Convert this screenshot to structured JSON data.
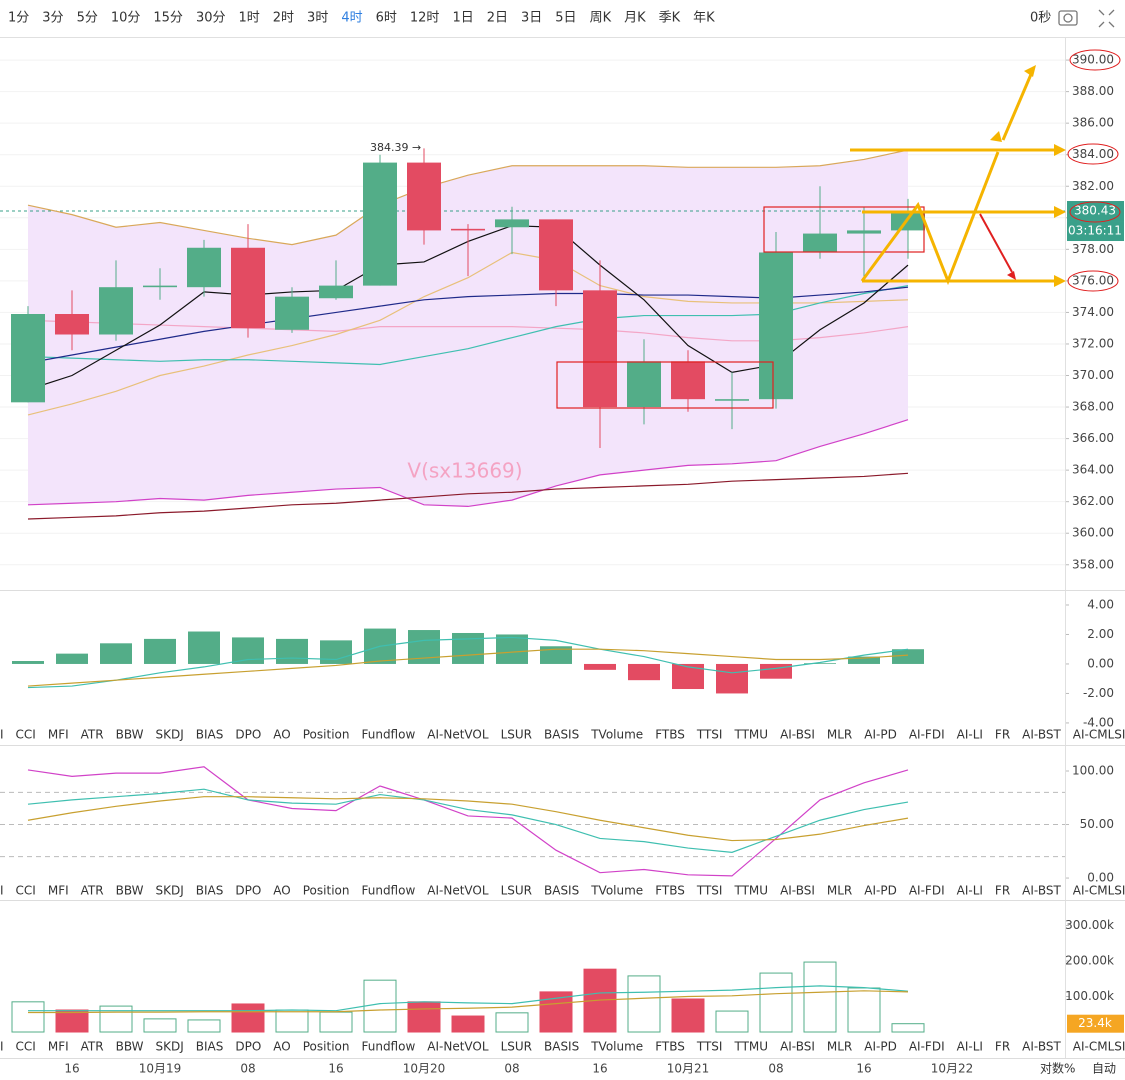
{
  "toolbar": {
    "timeframes": [
      "1分",
      "3分",
      "5分",
      "10分",
      "15分",
      "30分",
      "1时",
      "2时",
      "3时",
      "4时",
      "6时",
      "12时",
      "1日",
      "2日",
      "3日",
      "5日",
      "周K",
      "月K",
      "季K",
      "年K"
    ],
    "active_index": 9,
    "seconds": "0秒"
  },
  "indicator_tabs": [
    "I",
    "CCI",
    "MFI",
    "ATR",
    "BBW",
    "SKDJ",
    "BIAS",
    "DPO",
    "AO",
    "Position",
    "Fundflow",
    "AI-NetVOL",
    "LSUR",
    "BASIS",
    "TVolume",
    "FTBS",
    "TTSI",
    "TTMU",
    "AI-BSI",
    "MLR",
    "AI-PD",
    "AI-FDI",
    "AI-LI",
    "FR",
    "AI-BST",
    "AI-CMLSI"
  ],
  "time_axis": [
    null,
    "16",
    null,
    "10月19",
    null,
    "08",
    null,
    "16",
    null,
    "10月20",
    null,
    "08",
    null,
    "16",
    null,
    "10月21",
    null,
    "08",
    null,
    "16",
    null,
    "10月22"
  ],
  "footer": {
    "log": "对数",
    "percent": "%",
    "auto": "自动"
  },
  "watermark": "V(sx13669)",
  "chart_data": [
    {
      "type": "candlestick",
      "up_color": "#53ad88",
      "down_color": "#e34b62",
      "grid": true,
      "open": [
        368.3,
        373.9,
        372.6,
        375.6,
        375.6,
        378.1,
        372.9,
        374.9,
        375.7,
        383.5,
        379.3,
        379.4,
        379.9,
        375.4,
        368.0,
        370.9,
        368.4,
        368.5,
        377.8,
        379.0,
        379.2
      ],
      "high": [
        374.4,
        375.4,
        377.3,
        376.8,
        378.6,
        379.6,
        375.6,
        377.3,
        384.0,
        384.4,
        379.6,
        380.7,
        379.9,
        377.3,
        372.3,
        371.6,
        370.2,
        379.1,
        382.0,
        380.7,
        381.2
      ],
      "low": [
        368.3,
        371.6,
        372.2,
        374.8,
        375.0,
        372.4,
        372.7,
        374.8,
        375.7,
        378.3,
        376.3,
        377.7,
        374.4,
        365.4,
        366.9,
        367.7,
        366.6,
        367.9,
        377.4,
        376.1,
        377.4
      ],
      "close": [
        373.9,
        372.6,
        375.6,
        375.7,
        378.1,
        373.0,
        375.0,
        375.7,
        383.5,
        379.2,
        379.2,
        379.9,
        375.4,
        368.0,
        370.9,
        368.5,
        368.5,
        377.8,
        379.0,
        379.2,
        380.4
      ],
      "series": [
        {
          "color": "#f3a6c6",
          "values": [
            373.5,
            373.4,
            373.3,
            373.2,
            373.1,
            373.0,
            372.9,
            372.8,
            373.1,
            373.1,
            373.1,
            373.1,
            373.0,
            372.9,
            372.7,
            372.4,
            372.2,
            372.2,
            372.4,
            372.7,
            373.1
          ]
        },
        {
          "color": "#d9a85a",
          "values": [
            380.8,
            380.2,
            379.4,
            379.7,
            379.2,
            378.7,
            378.3,
            378.9,
            380.8,
            381.9,
            382.7,
            383.3,
            383.3,
            383.3,
            383.3,
            383.2,
            383.2,
            383.2,
            383.3,
            383.7,
            384.3
          ]
        },
        {
          "color": "#d142c8",
          "values": [
            361.8,
            361.9,
            362.0,
            362.2,
            362.1,
            362.4,
            362.6,
            362.8,
            362.9,
            361.8,
            361.7,
            362.1,
            363.0,
            363.7,
            364.0,
            364.3,
            364.4,
            364.6,
            365.5,
            366.3,
            367.2
          ]
        },
        {
          "color": "#8b1a2b",
          "values": [
            360.9,
            361.0,
            361.1,
            361.3,
            361.4,
            361.6,
            361.8,
            361.9,
            362.1,
            362.3,
            362.5,
            362.6,
            362.8,
            362.9,
            363.0,
            363.1,
            363.3,
            363.4,
            363.5,
            363.6,
            363.8
          ]
        },
        {
          "color": "#e8c07a",
          "values": [
            367.5,
            368.2,
            369.0,
            370.0,
            370.6,
            371.3,
            371.9,
            372.6,
            373.5,
            375.0,
            376.2,
            377.8,
            377.3,
            375.7,
            375.0,
            374.7,
            374.6,
            374.6,
            374.6,
            374.7,
            374.8
          ]
        },
        {
          "color": "#3fbfb0",
          "values": [
            371.2,
            371.1,
            371.0,
            370.9,
            371.0,
            371.0,
            370.9,
            370.8,
            370.7,
            371.2,
            371.7,
            372.4,
            373.1,
            373.6,
            373.8,
            373.8,
            373.8,
            373.9,
            374.6,
            375.2,
            375.7
          ]
        },
        {
          "color": "#1f2a8a",
          "values": [
            370.8,
            371.3,
            371.8,
            372.3,
            372.8,
            373.2,
            373.6,
            374.0,
            374.4,
            374.8,
            375.0,
            375.1,
            375.2,
            375.2,
            375.1,
            375.1,
            375.0,
            374.9,
            375.1,
            375.3,
            375.6
          ]
        },
        {
          "color": "#111111",
          "values": [
            369.1,
            370.0,
            371.6,
            373.2,
            375.3,
            375.1,
            375.3,
            375.4,
            377.0,
            377.2,
            378.5,
            379.5,
            379.4,
            377.0,
            374.8,
            371.9,
            370.2,
            370.7,
            372.9,
            374.6,
            377.0
          ]
        }
      ],
      "ylim": [
        356.4,
        391.4
      ],
      "yticks": [
        {
          "value": 358,
          "label": "358.00"
        },
        {
          "value": 360,
          "label": "360.00"
        },
        {
          "value": 362,
          "label": "362.00"
        },
        {
          "value": 364,
          "label": "364.00"
        },
        {
          "value": 366,
          "label": "366.00"
        },
        {
          "value": 368,
          "label": "368.00"
        },
        {
          "value": 370,
          "label": "370.00"
        },
        {
          "value": 372,
          "label": "372.00"
        },
        {
          "value": 374,
          "label": "374.00"
        },
        {
          "value": 376,
          "label": "376.00"
        },
        {
          "value": 378,
          "label": "378.00"
        },
        {
          "value": 380,
          "label": "380.00"
        },
        {
          "value": 382,
          "label": "382.00"
        },
        {
          "value": 384,
          "label": "384.00"
        },
        {
          "value": 386,
          "label": "386.00"
        },
        {
          "value": 388,
          "label": "388.00"
        },
        {
          "value": 390,
          "label": "390.00"
        }
      ],
      "last_price": 380.43,
      "countdown": "03:16:11",
      "high_label": "384.39 →"
    },
    {
      "type": "bar",
      "up_color": "#53ad88",
      "down_color": "#e34b62",
      "values": [
        0.2,
        0.7,
        1.4,
        1.7,
        2.2,
        1.8,
        1.7,
        1.6,
        2.4,
        2.3,
        2.1,
        2.0,
        1.2,
        -0.4,
        -1.1,
        -1.7,
        -2.0,
        -1.0,
        0.05,
        0.5,
        1.0
      ],
      "series": [
        {
          "color": "#3fbfb0",
          "values": [
            -1.6,
            -1.5,
            -1.1,
            -0.6,
            -0.2,
            0.3,
            0.4,
            0.3,
            1.2,
            1.6,
            1.7,
            1.8,
            1.6,
            1.0,
            0.5,
            -0.2,
            -0.6,
            -0.3,
            0.1,
            0.6,
            1.0
          ]
        },
        {
          "color": "#c8a030",
          "values": [
            -1.5,
            -1.3,
            -1.1,
            -0.9,
            -0.7,
            -0.5,
            -0.3,
            -0.1,
            0.2,
            0.4,
            0.6,
            0.8,
            1.0,
            1.0,
            0.9,
            0.7,
            0.5,
            0.3,
            0.3,
            0.4,
            0.6
          ]
        }
      ],
      "ylim": [
        -4.14,
        4.88
      ],
      "yticks": [
        {
          "value": 4,
          "label": "4.00"
        },
        {
          "value": 2,
          "label": "2.00"
        },
        {
          "value": 0,
          "label": "0.00"
        },
        {
          "value": -2,
          "label": "-2.00"
        },
        {
          "value": -4,
          "label": "-4.00"
        }
      ]
    },
    {
      "type": "line",
      "reference_lines": [
        80,
        50,
        20
      ],
      "series": [
        {
          "color": "#d142c8",
          "values": [
            101,
            95,
            98,
            98,
            104,
            73,
            65,
            63,
            86,
            73,
            58,
            56,
            26,
            5,
            8,
            3,
            2,
            37,
            73,
            89,
            101
          ]
        },
        {
          "color": "#3fbfb0",
          "values": [
            69,
            73,
            76,
            79,
            83,
            73,
            70,
            69,
            78,
            73,
            64,
            59,
            50,
            37,
            34,
            28,
            24,
            39,
            54,
            64,
            71
          ]
        },
        {
          "color": "#c8a030",
          "values": [
            54,
            61,
            67,
            72,
            76,
            76,
            75,
            74,
            75,
            74,
            72,
            69,
            62,
            54,
            47,
            40,
            35,
            36,
            41,
            49,
            56
          ]
        }
      ],
      "ylim": [
        -3.7,
        124.3
      ],
      "yticks": [
        {
          "value": 0,
          "label": "0.00"
        },
        {
          "value": 50,
          "label": "50.00"
        },
        {
          "value": 100,
          "label": "100.00"
        }
      ]
    },
    {
      "type": "volume",
      "up_color": "#53ad88",
      "down_color": "#e34b62",
      "values": [
        85000,
        62000,
        73000,
        37000,
        34000,
        79000,
        62000,
        56000,
        146000,
        85000,
        45000,
        54000,
        113000,
        177000,
        158000,
        93000,
        59000,
        166000,
        197000,
        124000,
        23400
      ],
      "series": [
        {
          "color": "#3fbfb0",
          "values": [
            60000,
            60000,
            60000,
            60000,
            60000,
            60000,
            62000,
            60000,
            80000,
            85000,
            82000,
            80000,
            95000,
            110000,
            112000,
            115000,
            118000,
            125000,
            130000,
            125000,
            115000
          ]
        },
        {
          "color": "#c8a030",
          "values": [
            55000,
            55000,
            56000,
            56000,
            57000,
            57000,
            57000,
            57000,
            62000,
            65000,
            67000,
            70000,
            80000,
            90000,
            95000,
            100000,
            102000,
            108000,
            112000,
            116000,
            113000
          ]
        }
      ],
      "ylim": [
        -22500,
        371800
      ],
      "yticks": [
        {
          "value": 100000,
          "label": "100.00k"
        },
        {
          "value": 200000,
          "label": "200.00k"
        },
        {
          "value": 300000,
          "label": "300.00k"
        }
      ],
      "last_value": 23400,
      "last_label": "23.4k"
    }
  ]
}
